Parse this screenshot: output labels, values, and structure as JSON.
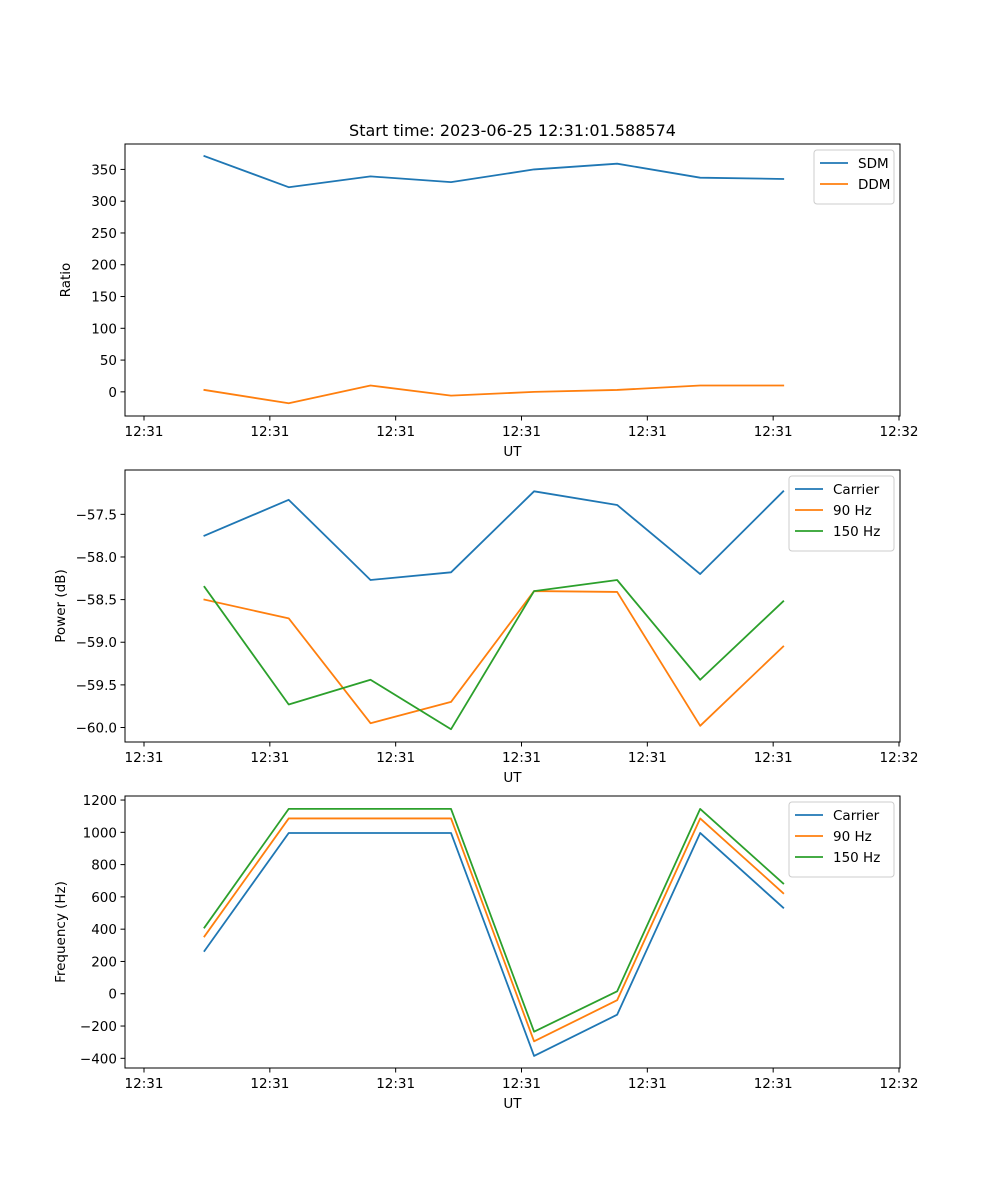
{
  "figure": {
    "title": "Start time: 2023-06-25 12:31:01.588574"
  },
  "colors": {
    "blue": "#1f77b4",
    "orange": "#ff7f0e",
    "green": "#2ca02c"
  },
  "chart_data": [
    {
      "type": "line",
      "title": "Start time: 2023-06-25 12:31:01.588574",
      "xlabel": "UT",
      "ylabel": "Ratio",
      "x_tick_labels": [
        "12:31",
        "12:31",
        "12:31",
        "12:31",
        "12:31",
        "12:31",
        "12:32"
      ],
      "x_range_ticks": [
        0,
        6
      ],
      "x": [
        0.48,
        1.15,
        1.8,
        2.44,
        3.1,
        3.76,
        4.42,
        5.08
      ],
      "ylim": [
        -38,
        390
      ],
      "yticks": [
        0,
        50,
        100,
        150,
        200,
        250,
        300,
        350
      ],
      "legend_loc": "upper right",
      "grid": false,
      "series": [
        {
          "name": "SDM",
          "color": "#1f77b4",
          "values": [
            371,
            322,
            339,
            330,
            350,
            359,
            337,
            335
          ]
        },
        {
          "name": "DDM",
          "color": "#ff7f0e",
          "values": [
            3,
            -18,
            10,
            -6,
            0,
            3,
            10,
            10
          ]
        }
      ]
    },
    {
      "type": "line",
      "title": "",
      "xlabel": "UT",
      "ylabel": "Power (dB)",
      "x_tick_labels": [
        "12:31",
        "12:31",
        "12:31",
        "12:31",
        "12:31",
        "12:31",
        "12:32"
      ],
      "x_range_ticks": [
        0,
        6
      ],
      "x": [
        0.48,
        1.15,
        1.8,
        2.44,
        3.1,
        3.76,
        4.42,
        5.08
      ],
      "ylim": [
        -60.17,
        -56.98
      ],
      "yticks": [
        -60.0,
        -59.5,
        -59.0,
        -58.5,
        -58.0,
        -57.5
      ],
      "ytick_labels": [
        "−60.0",
        "−59.5",
        "−59.0",
        "−58.5",
        "−58.0",
        "−57.5"
      ],
      "legend_loc": "upper right",
      "grid": false,
      "series": [
        {
          "name": "Carrier",
          "color": "#1f77b4",
          "values": [
            -57.75,
            -57.33,
            -58.27,
            -58.18,
            -57.23,
            -57.39,
            -58.2,
            -57.23
          ]
        },
        {
          "name": "90 Hz",
          "color": "#ff7f0e",
          "values": [
            -58.5,
            -58.72,
            -59.95,
            -59.7,
            -58.4,
            -58.41,
            -59.98,
            -59.05
          ]
        },
        {
          "name": "150 Hz",
          "color": "#2ca02c",
          "values": [
            -58.35,
            -59.73,
            -59.44,
            -60.02,
            -58.4,
            -58.27,
            -59.44,
            -58.52
          ]
        }
      ]
    },
    {
      "type": "line",
      "title": "",
      "xlabel": "UT",
      "ylabel": "Frequency (Hz)",
      "x_tick_labels": [
        "12:31",
        "12:31",
        "12:31",
        "12:31",
        "12:31",
        "12:31",
        "12:32"
      ],
      "x_range_ticks": [
        0,
        6
      ],
      "x": [
        0.48,
        1.15,
        1.8,
        2.44,
        3.1,
        3.76,
        4.42,
        5.08
      ],
      "ylim": [
        -460,
        1225
      ],
      "yticks": [
        -400,
        -200,
        0,
        200,
        400,
        600,
        800,
        1000,
        1200
      ],
      "ytick_labels": [
        "−400",
        "−200",
        "0",
        "200",
        "400",
        "600",
        "800",
        "1000",
        "1200"
      ],
      "legend_loc": "upper right",
      "grid": false,
      "series": [
        {
          "name": "Carrier",
          "color": "#1f77b4",
          "values": [
            265,
            996,
            996,
            996,
            -385,
            -130,
            996,
            533
          ]
        },
        {
          "name": "90 Hz",
          "color": "#ff7f0e",
          "values": [
            355,
            1086,
            1086,
            1086,
            -295,
            -40,
            1086,
            623
          ]
        },
        {
          "name": "150 Hz",
          "color": "#2ca02c",
          "values": [
            410,
            1145,
            1145,
            1145,
            -235,
            15,
            1145,
            683
          ]
        }
      ]
    }
  ]
}
